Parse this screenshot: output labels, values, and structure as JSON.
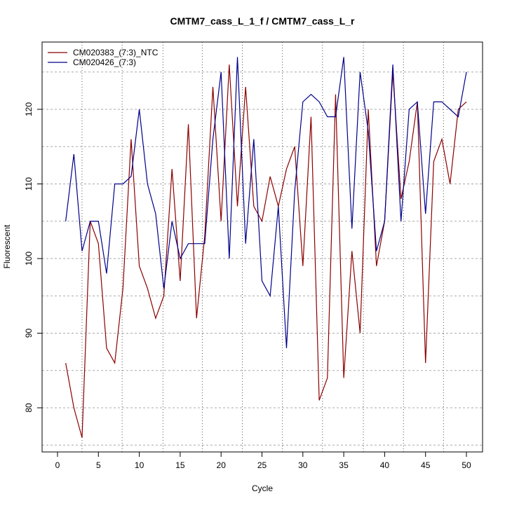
{
  "chart_data": {
    "type": "line",
    "title": "CMTM7_cass_L_1_f / CMTM7_cass_L_r",
    "xlabel": "Cycle",
    "ylabel": "Fluorescent",
    "xlim": [
      -2,
      52
    ],
    "ylim": [
      74,
      129
    ],
    "xticks": [
      0,
      5,
      10,
      15,
      20,
      25,
      30,
      35,
      40,
      45,
      50
    ],
    "yticks": [
      80,
      90,
      100,
      110,
      120
    ],
    "grid": true,
    "horizontal_gridlines": [
      75,
      80,
      85,
      90,
      95,
      100,
      105,
      110,
      115,
      120,
      125
    ],
    "vertical_gridlines": [
      3,
      7.9,
      12.9,
      17.7,
      22.6,
      27.5,
      32.4,
      37.4,
      42.3,
      47.2
    ],
    "legend_position": "top-left",
    "x": [
      1,
      2,
      3,
      4,
      5,
      6,
      7,
      8,
      9,
      10,
      11,
      12,
      13,
      14,
      15,
      16,
      17,
      18,
      19,
      20,
      21,
      22,
      23,
      24,
      25,
      26,
      27,
      28,
      29,
      30,
      31,
      32,
      33,
      34,
      35,
      36,
      37,
      38,
      39,
      40,
      41,
      42,
      43,
      44,
      45,
      46,
      47,
      48,
      49,
      50
    ],
    "series": [
      {
        "name": "CM020383_(7:3)_NTC",
        "color": "#8b0000",
        "values": [
          86,
          80,
          76,
          105,
          102,
          88,
          86,
          96,
          116,
          99,
          96,
          92,
          95,
          112,
          97,
          118,
          92,
          103,
          123,
          105,
          126,
          107,
          123,
          107,
          105,
          111,
          107,
          112,
          115,
          99,
          119,
          81,
          84,
          122,
          84,
          101,
          90,
          120,
          99,
          105,
          125,
          108,
          113,
          121,
          86,
          113,
          116,
          110,
          120,
          121
        ]
      },
      {
        "name": "CM020426_(7:3)",
        "color": "#00008b",
        "values": [
          105,
          114,
          101,
          105,
          105,
          98,
          110,
          110,
          111,
          120,
          110,
          106,
          96,
          105,
          100,
          102,
          102,
          102,
          116,
          125,
          100,
          127,
          102,
          116,
          97,
          95,
          107,
          88,
          109,
          121,
          122,
          121,
          119,
          119,
          127,
          104,
          125,
          117,
          101,
          105,
          126,
          105,
          120,
          121,
          106,
          121,
          121,
          120,
          119,
          125
        ]
      }
    ]
  }
}
